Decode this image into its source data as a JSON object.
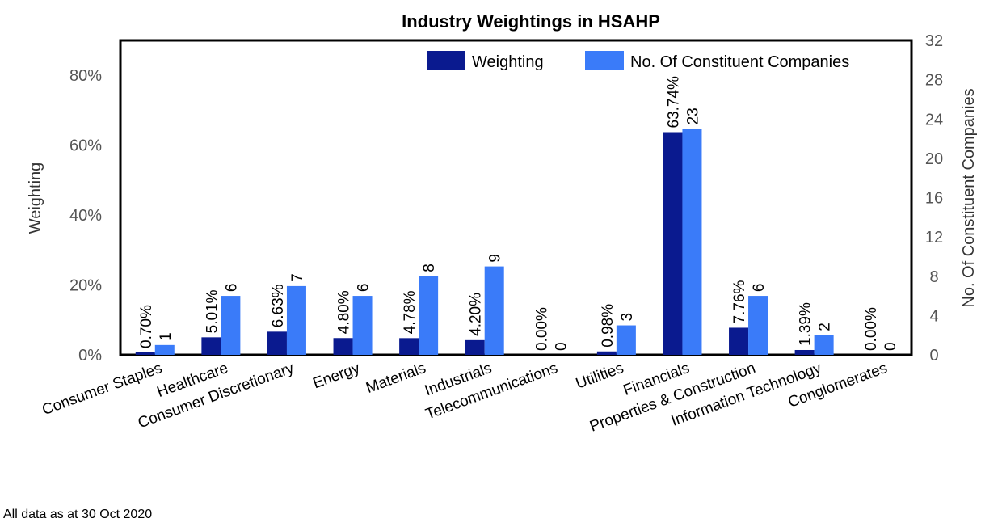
{
  "note": "All data as at 30 Oct 2020",
  "colors": {
    "weighting": "#0A1A8F",
    "companies": "#3A7BF9"
  },
  "chart_data": {
    "type": "bar",
    "title": "Industry Weightings in HSAHP",
    "ylabel": "Weighting",
    "y2label": "No. Of Constituent Companies",
    "ylim": [
      0,
      90
    ],
    "y2lim": [
      0,
      32
    ],
    "yticks": [
      "0%",
      "20%",
      "40%",
      "60%",
      "80%"
    ],
    "y2ticks": [
      "0",
      "4",
      "8",
      "12",
      "16",
      "20",
      "24",
      "28",
      "32"
    ],
    "legend_position": "top-right",
    "categories": [
      "Consumer Staples",
      "Healthcare",
      "Consumer Discretionary",
      "Energy",
      "Materials",
      "Industrials",
      "Telecommunications",
      "Utilities",
      "Financials",
      "Properties & Construction",
      "Information Technology",
      "Conglomerates"
    ],
    "series": [
      {
        "name": "Weighting",
        "axis": "left",
        "values": [
          0.7,
          5.01,
          6.63,
          4.8,
          4.78,
          4.2,
          0.0,
          0.98,
          63.74,
          7.76,
          1.39,
          0.0
        ],
        "labels": [
          "0.70%",
          "5.01%",
          "6.63%",
          "4.80%",
          "4.78%",
          "4.20%",
          "0.00%",
          "0.98%",
          "63.74%",
          "7.76%",
          "1.39%",
          "0.00%"
        ]
      },
      {
        "name": "No. Of Constituent Companies",
        "axis": "right",
        "values": [
          1,
          6,
          7,
          6,
          8,
          9,
          0,
          3,
          23,
          6,
          2,
          0
        ],
        "labels": [
          "1",
          "6",
          "7",
          "6",
          "8",
          "9",
          "0",
          "3",
          "23",
          "6",
          "2",
          "0"
        ]
      }
    ]
  }
}
